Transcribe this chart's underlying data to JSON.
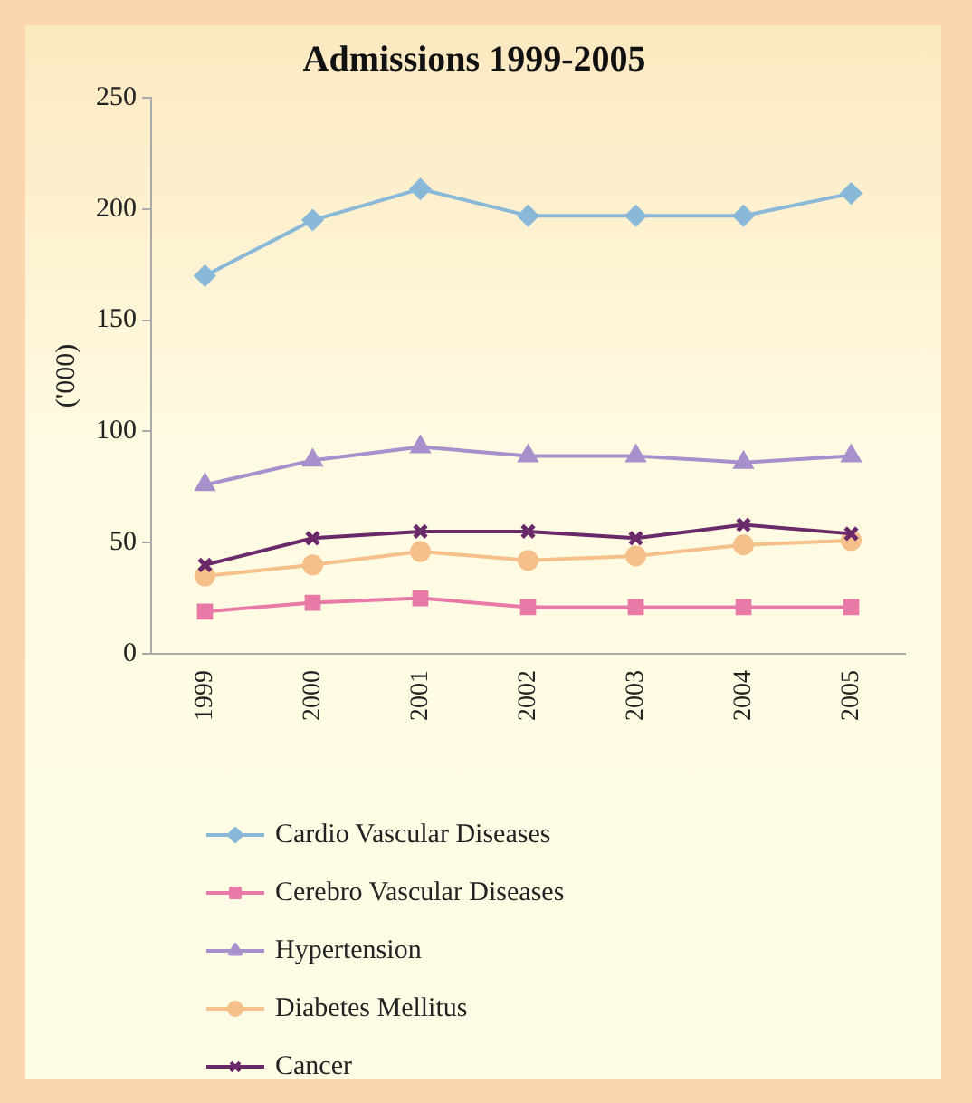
{
  "chart_data": {
    "type": "line",
    "title": "Admissions 1999-2005",
    "ylabel": "('000)",
    "categories": [
      "1999",
      "2000",
      "2001",
      "2002",
      "2003",
      "2004",
      "2005"
    ],
    "ylim": [
      0,
      250
    ],
    "yticks": [
      0,
      50,
      100,
      150,
      200,
      250
    ],
    "grid": false,
    "legend": "bottom",
    "line_style": "solid",
    "series": [
      {
        "name": "Cardio Vascular Diseases",
        "color": "#8ab8d8",
        "marker": "diamond",
        "values": [
          170,
          195,
          209,
          197,
          197,
          197,
          207
        ]
      },
      {
        "name": "Cerebro Vascular Diseases",
        "color": "#e87aa8",
        "marker": "square",
        "values": [
          19,
          23,
          25,
          21,
          21,
          21,
          21
        ]
      },
      {
        "name": "Hypertension",
        "color": "#a890cc",
        "marker": "triangle",
        "values": [
          76,
          87,
          93,
          89,
          89,
          86,
          89
        ]
      },
      {
        "name": "Diabetes Mellitus",
        "color": "#f5c08a",
        "marker": "circle",
        "values": [
          35,
          40,
          46,
          42,
          44,
          49,
          51
        ]
      },
      {
        "name": "Cancer",
        "color": "#6a2a6a",
        "marker": "cross",
        "values": [
          40,
          52,
          55,
          55,
          52,
          58,
          54
        ]
      }
    ]
  }
}
